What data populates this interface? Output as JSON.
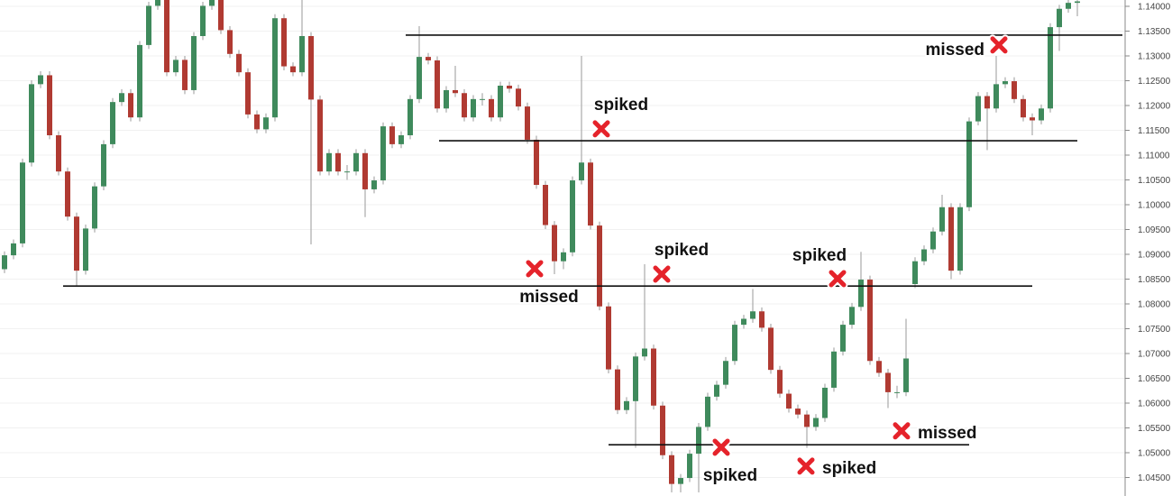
{
  "chart_data": {
    "type": "candlestick",
    "title": "",
    "xlabel": "",
    "ylabel": "",
    "ylim": [
      1.0405,
      1.1413
    ],
    "y_axis_position": "right",
    "grid": "horizontal, faint",
    "y_ticks": [
      "1.14000",
      "1.13500",
      "1.13000",
      "1.12500",
      "1.12000",
      "1.11500",
      "1.11000",
      "1.10500",
      "1.10000",
      "1.09500",
      "1.09000",
      "1.08500",
      "1.08000",
      "1.07500",
      "1.07000",
      "1.06500",
      "1.06000",
      "1.05500",
      "1.05000",
      "1.04500"
    ],
    "colors": {
      "up": "#3f8a5c",
      "down": "#b03a32",
      "wick": "#9a9a9a",
      "level_line": "#111111",
      "marker": "#e5232b"
    },
    "candles_ohlc": [
      [
        1.087,
        1.0906,
        1.0862,
        1.0898
      ],
      [
        1.0898,
        1.093,
        1.089,
        1.0922
      ],
      [
        1.0922,
        1.1093,
        1.0914,
        1.1085
      ],
      [
        1.1085,
        1.1251,
        1.1077,
        1.1243
      ],
      [
        1.1243,
        1.1269,
        1.1235,
        1.1261
      ],
      [
        1.1261,
        1.1269,
        1.1132,
        1.114
      ],
      [
        1.114,
        1.1148,
        1.1059,
        1.1067
      ],
      [
        1.1067,
        1.1075,
        1.0968,
        1.0976
      ],
      [
        1.0976,
        1.0984,
        1.0836,
        1.0867
      ],
      [
        1.0867,
        1.096,
        1.0859,
        1.0952
      ],
      [
        1.0952,
        1.1045,
        1.0944,
        1.1037
      ],
      [
        1.1037,
        1.113,
        1.1029,
        1.1122
      ],
      [
        1.1122,
        1.1215,
        1.1114,
        1.1207
      ],
      [
        1.1207,
        1.1233,
        1.1199,
        1.1225
      ],
      [
        1.1225,
        1.1233,
        1.1168,
        1.1176
      ],
      [
        1.1176,
        1.133,
        1.1168,
        1.1322
      ],
      [
        1.1322,
        1.1409,
        1.1314,
        1.1401
      ],
      [
        1.1401,
        1.1421,
        1.1393,
        1.1413
      ],
      [
        1.1413,
        1.1421,
        1.1259,
        1.1267
      ],
      [
        1.1267,
        1.13,
        1.1259,
        1.1292
      ],
      [
        1.1292,
        1.13,
        1.1223,
        1.1231
      ],
      [
        1.1231,
        1.1348,
        1.1223,
        1.134
      ],
      [
        1.134,
        1.1409,
        1.1332,
        1.1401
      ],
      [
        1.1401,
        1.1421,
        1.1393,
        1.1413
      ],
      [
        1.1413,
        1.1421,
        1.1344,
        1.1352
      ],
      [
        1.1352,
        1.136,
        1.1296,
        1.1304
      ],
      [
        1.1304,
        1.1312,
        1.1259,
        1.1267
      ],
      [
        1.1267,
        1.1275,
        1.1174,
        1.1182
      ],
      [
        1.1182,
        1.119,
        1.1144,
        1.1152
      ],
      [
        1.1152,
        1.1184,
        1.1144,
        1.1176
      ],
      [
        1.1176,
        1.1384,
        1.1168,
        1.1376
      ],
      [
        1.1376,
        1.1384,
        1.1271,
        1.1279
      ],
      [
        1.1279,
        1.1287,
        1.1259,
        1.1267
      ],
      [
        1.1267,
        1.142,
        1.1259,
        1.134
      ],
      [
        1.134,
        1.1348,
        1.092,
        1.1212
      ],
      [
        1.1212,
        1.122,
        1.1059,
        1.1067
      ],
      [
        1.1067,
        1.1112,
        1.1059,
        1.1104
      ],
      [
        1.1104,
        1.1112,
        1.1059,
        1.1067
      ],
      [
        1.1067,
        1.108,
        1.105,
        1.1067
      ],
      [
        1.1067,
        1.1112,
        1.1059,
        1.1104
      ],
      [
        1.1104,
        1.1112,
        1.0975,
        1.1031
      ],
      [
        1.1031,
        1.1057,
        1.1023,
        1.1049
      ],
      [
        1.1049,
        1.1166,
        1.1041,
        1.1158
      ],
      [
        1.1158,
        1.1166,
        1.1114,
        1.1122
      ],
      [
        1.1122,
        1.1148,
        1.1114,
        1.114
      ],
      [
        1.114,
        1.1221,
        1.1132,
        1.1213
      ],
      [
        1.1213,
        1.136,
        1.1205,
        1.1298
      ],
      [
        1.1298,
        1.1306,
        1.1283,
        1.1291
      ],
      [
        1.1291,
        1.1299,
        1.1186,
        1.1194
      ],
      [
        1.1194,
        1.1239,
        1.1186,
        1.1231
      ],
      [
        1.1231,
        1.128,
        1.1217,
        1.1225
      ],
      [
        1.1225,
        1.1233,
        1.1168,
        1.1176
      ],
      [
        1.1176,
        1.1221,
        1.1168,
        1.1213
      ],
      [
        1.1213,
        1.1225,
        1.12,
        1.1213
      ],
      [
        1.1213,
        1.1221,
        1.1168,
        1.1176
      ],
      [
        1.1176,
        1.1248,
        1.1168,
        1.124
      ],
      [
        1.124,
        1.1248,
        1.1226,
        1.1234
      ],
      [
        1.1234,
        1.1242,
        1.119,
        1.1198
      ],
      [
        1.1198,
        1.1206,
        1.1123,
        1.1131
      ],
      [
        1.1131,
        1.1139,
        1.1032,
        1.104
      ],
      [
        1.104,
        1.1048,
        1.0951,
        1.0959
      ],
      [
        1.0959,
        1.0967,
        1.086,
        1.0886
      ],
      [
        1.0886,
        1.0912,
        1.087,
        1.0904
      ],
      [
        1.0904,
        1.1057,
        1.0896,
        1.1049
      ],
      [
        1.1049,
        1.13,
        1.1041,
        1.1085
      ],
      [
        1.1085,
        1.1093,
        1.095,
        1.0958
      ],
      [
        1.0958,
        1.0966,
        1.0787,
        1.0795
      ],
      [
        1.0795,
        1.0803,
        1.066,
        1.0668
      ],
      [
        1.0668,
        1.0676,
        1.0578,
        1.0586
      ],
      [
        1.0586,
        1.0612,
        1.0578,
        1.0604
      ],
      [
        1.0604,
        1.0702,
        1.051,
        1.0694
      ],
      [
        1.0694,
        1.088,
        1.0686,
        1.071
      ],
      [
        1.071,
        1.0718,
        1.0587,
        1.0595
      ],
      [
        1.0595,
        1.0603,
        1.0487,
        1.0495
      ],
      [
        1.0495,
        1.0503,
        1.042,
        1.0437
      ],
      [
        1.0437,
        1.0457,
        1.042,
        1.0449
      ],
      [
        1.0449,
        1.0506,
        1.0441,
        1.0498
      ],
      [
        1.0498,
        1.056,
        1.042,
        1.0552
      ],
      [
        1.0552,
        1.0621,
        1.0544,
        1.0613
      ],
      [
        1.0613,
        1.0645,
        1.0605,
        1.0637
      ],
      [
        1.0637,
        1.0693,
        1.0629,
        1.0685
      ],
      [
        1.0685,
        1.0766,
        1.0677,
        1.0758
      ],
      [
        1.0758,
        1.0778,
        1.075,
        1.077
      ],
      [
        1.077,
        1.083,
        1.0762,
        1.0785
      ],
      [
        1.0785,
        1.0793,
        1.0744,
        1.0752
      ],
      [
        1.0752,
        1.076,
        1.0659,
        1.0667
      ],
      [
        1.0667,
        1.0675,
        1.0611,
        1.0619
      ],
      [
        1.0619,
        1.0627,
        1.0581,
        1.0589
      ],
      [
        1.0589,
        1.0597,
        1.0569,
        1.0577
      ],
      [
        1.0577,
        1.0585,
        1.051,
        1.0552
      ],
      [
        1.0552,
        1.0578,
        1.0544,
        1.057
      ],
      [
        1.057,
        1.0639,
        1.0562,
        1.0631
      ],
      [
        1.0631,
        1.0712,
        1.0623,
        1.0704
      ],
      [
        1.0704,
        1.0766,
        1.0696,
        1.0758
      ],
      [
        1.0758,
        1.0802,
        1.075,
        1.0794
      ],
      [
        1.0794,
        1.0905,
        1.0786,
        1.0849
      ],
      [
        1.0849,
        1.0857,
        1.0677,
        1.0685
      ],
      [
        1.0685,
        1.0693,
        1.0653,
        1.0661
      ],
      [
        1.0661,
        1.0669,
        1.059,
        1.0622
      ],
      [
        1.0622,
        1.0635,
        1.061,
        1.0622
      ],
      [
        1.0622,
        1.077,
        1.0614,
        1.069
      ],
      [
        1.084,
        1.0894,
        1.0832,
        1.0886
      ],
      [
        1.0886,
        1.0918,
        1.0878,
        1.091
      ],
      [
        1.091,
        1.0954,
        1.0902,
        1.0946
      ],
      [
        1.0946,
        1.102,
        1.0938,
        1.0995
      ],
      [
        1.0995,
        1.1003,
        1.085,
        1.0867
      ],
      [
        1.0867,
        1.1003,
        1.0859,
        1.0995
      ],
      [
        1.0995,
        1.1176,
        1.0987,
        1.1168
      ],
      [
        1.1168,
        1.1227,
        1.116,
        1.1219
      ],
      [
        1.1219,
        1.1227,
        1.111,
        1.1194
      ],
      [
        1.1194,
        1.13,
        1.1186,
        1.1243
      ],
      [
        1.1243,
        1.1257,
        1.1235,
        1.1249
      ],
      [
        1.1249,
        1.1257,
        1.1205,
        1.1213
      ],
      [
        1.1213,
        1.1221,
        1.1168,
        1.1176
      ],
      [
        1.1176,
        1.1184,
        1.114,
        1.117
      ],
      [
        1.117,
        1.1202,
        1.1162,
        1.1194
      ],
      [
        1.1194,
        1.1366,
        1.1186,
        1.1358
      ],
      [
        1.1358,
        1.1403,
        1.131,
        1.1395
      ],
      [
        1.1395,
        1.142,
        1.1387,
        1.1407
      ],
      [
        1.1407,
        1.142,
        1.138,
        1.141
      ]
    ],
    "level_lines": [
      {
        "price": 1.1342,
        "from_candle": 44.5,
        "to_candle": 124
      },
      {
        "price": 1.1129,
        "from_candle": 48.2,
        "to_candle": 119
      },
      {
        "price": 1.0836,
        "from_candle": 6.5,
        "to_candle": 114
      },
      {
        "price": 1.0516,
        "from_candle": 67,
        "to_candle": 107
      }
    ],
    "annotations": [
      {
        "text": "missed",
        "candle": 110.3,
        "price": 1.1322,
        "label": "left"
      },
      {
        "text": "spiked",
        "candle": 66.2,
        "price": 1.1153,
        "label": "above"
      },
      {
        "text": "missed",
        "candle": 58.8,
        "price": 1.0871,
        "label": "below"
      },
      {
        "text": "spiked",
        "candle": 72.9,
        "price": 1.086,
        "label": "above"
      },
      {
        "text": "spiked",
        "candle": 92.4,
        "price": 1.0851,
        "label": "above-left"
      },
      {
        "text": "spiked",
        "candle": 79.5,
        "price": 1.0511,
        "label": "below"
      },
      {
        "text": "spiked",
        "candle": 88.9,
        "price": 1.0473,
        "label": "right"
      },
      {
        "text": "missed",
        "candle": 99.5,
        "price": 1.0544,
        "label": "right"
      }
    ]
  }
}
